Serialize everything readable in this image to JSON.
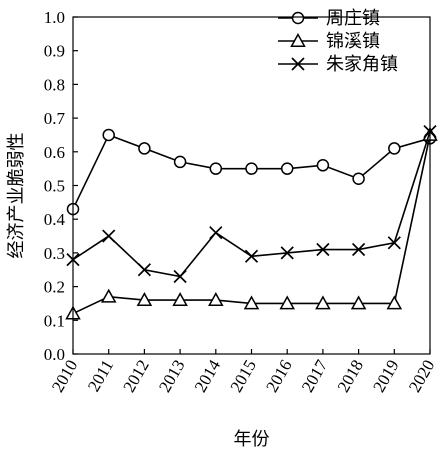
{
  "chart_data": {
    "type": "line",
    "xlabel": "年份",
    "ylabel": "经济产业脆弱性",
    "ylim": [
      0,
      1.0
    ],
    "yticks": [
      "0.0",
      "0.1",
      "0.2",
      "0.3",
      "0.4",
      "0.5",
      "0.6",
      "0.7",
      "0.8",
      "0.9",
      "1.0"
    ],
    "categories": [
      "2010",
      "2011",
      "2012",
      "2013",
      "2014",
      "2015",
      "2016",
      "2017",
      "2018",
      "2019",
      "2020"
    ],
    "grid": false,
    "legend_position": "top-right",
    "series": [
      {
        "name": "周庄镇",
        "marker": "circle",
        "values": [
          0.43,
          0.65,
          0.61,
          0.57,
          0.55,
          0.55,
          0.55,
          0.56,
          0.52,
          0.61,
          0.64
        ]
      },
      {
        "name": "锦溪镇",
        "marker": "triangle",
        "values": [
          0.12,
          0.17,
          0.16,
          0.16,
          0.16,
          0.15,
          0.15,
          0.15,
          0.15,
          0.15,
          0.65
        ]
      },
      {
        "name": "朱家角镇",
        "marker": "x",
        "values": [
          0.28,
          0.35,
          0.25,
          0.23,
          0.36,
          0.29,
          0.3,
          0.31,
          0.31,
          0.33,
          0.66
        ]
      }
    ]
  }
}
